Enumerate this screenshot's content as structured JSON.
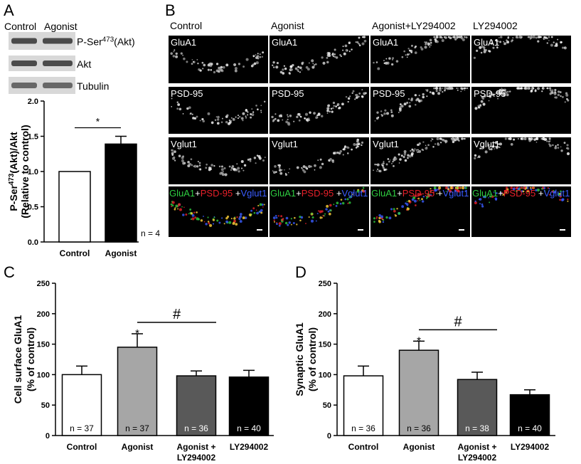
{
  "panel_labels": [
    "A",
    "B",
    "C",
    "D"
  ],
  "blot": {
    "lanes": [
      "Control",
      "Agonist"
    ],
    "bands": [
      [
        {
          "text": "P-Ser"
        },
        {
          "text": "473",
          "sup": true
        },
        {
          "text": "(Akt)"
        }
      ],
      [
        {
          "text": "Akt"
        }
      ],
      [
        {
          "text": "Tubulin"
        }
      ]
    ]
  },
  "micrographs": {
    "columns": [
      "Control",
      "Agonist",
      "Agonist+LY294002",
      "LY294002"
    ],
    "rows": [
      "GluA1",
      "PSD-95",
      "Vglut1"
    ],
    "merge": [
      {
        "text": "GluA1",
        "color": "#2ecc40"
      },
      {
        "text": "+",
        "color": "#ffffff"
      },
      {
        "text": "PSD-95",
        "color": "#e8202a"
      },
      {
        "text": " +",
        "color": "#ffffff"
      },
      {
        "text": "Vglut1",
        "color": "#3a5cff"
      }
    ]
  },
  "chart_data": [
    {
      "type": "bar",
      "categories": [
        "Control",
        "Agonist"
      ],
      "values": [
        1.0,
        1.39
      ],
      "errors": [
        0,
        0.11
      ],
      "colors": [
        "#ffffff",
        "#000000"
      ],
      "ylabel": [
        [
          {
            "text": "P-Ser"
          },
          {
            "text": "473",
            "sup": true
          },
          {
            "text": "(Akt)/Akt"
          }
        ],
        [
          {
            "text": "(Relative to control)"
          }
        ]
      ],
      "ylim": [
        0,
        2.0
      ],
      "yticks": [
        {
          "value": 0,
          "label": "0.0"
        },
        {
          "value": 0.5,
          "label": "0.5"
        },
        {
          "value": 1.0,
          "label": "1.0"
        },
        {
          "value": 1.5,
          "label": "1.5"
        },
        {
          "value": 2.0,
          "label": "2.0"
        }
      ],
      "annotations": [
        "*"
      ],
      "note": "n = 4"
    },
    {
      "type": "bar",
      "categories": [
        "Control",
        "Agonist",
        "Agonist + LY294002",
        "LY294002"
      ],
      "values": [
        100,
        145,
        98,
        96
      ],
      "errors": [
        14,
        22,
        8,
        11
      ],
      "colors": [
        "#ffffff",
        "#a6a6a6",
        "#595959",
        "#000000"
      ],
      "n_labels": [
        "n = 37",
        "n = 37",
        "n = 36",
        "n = 40"
      ],
      "ylabel": [
        [
          {
            "text": "Cell surface GluA1"
          }
        ],
        [
          {
            "text": "(% of control)"
          }
        ]
      ],
      "ylim": [
        0,
        250
      ],
      "yticks": [
        0,
        50,
        100,
        150,
        200,
        250
      ],
      "annotations": [
        "*",
        "#"
      ]
    },
    {
      "type": "bar",
      "categories": [
        "Control",
        "Agonist",
        "Agonist + LY294002",
        "LY294002"
      ],
      "values": [
        98,
        140,
        92,
        67
      ],
      "errors": [
        16,
        15,
        12,
        8
      ],
      "colors": [
        "#ffffff",
        "#a6a6a6",
        "#595959",
        "#000000"
      ],
      "n_labels": [
        "n = 36",
        "n = 36",
        "n = 38",
        "n = 40"
      ],
      "ylabel": [
        [
          {
            "text": "Synaptic GluA1"
          }
        ],
        [
          {
            "text": "(% of control)"
          }
        ]
      ],
      "ylim": [
        0,
        250
      ],
      "yticks": [
        0,
        50,
        100,
        150,
        200,
        250
      ],
      "annotations": [
        "*",
        "#"
      ]
    }
  ]
}
